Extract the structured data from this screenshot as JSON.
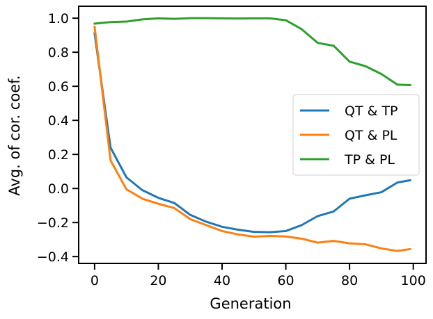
{
  "chart_data": {
    "type": "line",
    "title": "",
    "xlabel": "Generation",
    "ylabel": "Avg. of cor. coef.",
    "xlim": [
      -5,
      104
    ],
    "ylim": [
      -0.44,
      1.07
    ],
    "xticks": [
      0,
      20,
      40,
      60,
      80,
      100
    ],
    "yticks": [
      -0.4,
      -0.2,
      0.0,
      0.2,
      0.4,
      0.6,
      0.8,
      1.0
    ],
    "xtick_labels": [
      "0",
      "20",
      "40",
      "60",
      "80",
      "100"
    ],
    "ytick_labels": [
      "−0.4",
      "−0.2",
      "0.0",
      "0.2",
      "0.4",
      "0.6",
      "0.8",
      "1.0"
    ],
    "grid": false,
    "legend_position": "right",
    "x": [
      0,
      5,
      10,
      15,
      20,
      25,
      30,
      35,
      40,
      45,
      50,
      55,
      60,
      65,
      70,
      75,
      80,
      85,
      90,
      95,
      99
    ],
    "series": [
      {
        "name": "QT & TP",
        "color": "#1f77b4",
        "values": [
          0.91,
          0.24,
          0.065,
          -0.01,
          -0.055,
          -0.085,
          -0.155,
          -0.195,
          -0.225,
          -0.242,
          -0.255,
          -0.257,
          -0.25,
          -0.215,
          -0.162,
          -0.135,
          -0.06,
          -0.04,
          -0.022,
          0.035,
          0.048
        ]
      },
      {
        "name": "QT & PL",
        "color": "#ff7f0e",
        "values": [
          0.95,
          0.165,
          -0.005,
          -0.06,
          -0.09,
          -0.115,
          -0.18,
          -0.215,
          -0.25,
          -0.27,
          -0.283,
          -0.279,
          -0.282,
          -0.295,
          -0.318,
          -0.308,
          -0.322,
          -0.328,
          -0.352,
          -0.367,
          -0.356
        ]
      },
      {
        "name": "TP & PL",
        "color": "#2ca02c",
        "values": [
          0.968,
          0.977,
          0.98,
          0.993,
          0.999,
          0.996,
          1.0,
          1.0,
          0.999,
          0.998,
          0.999,
          0.999,
          0.988,
          0.935,
          0.855,
          0.838,
          0.745,
          0.718,
          0.672,
          0.61,
          0.607
        ]
      }
    ]
  }
}
